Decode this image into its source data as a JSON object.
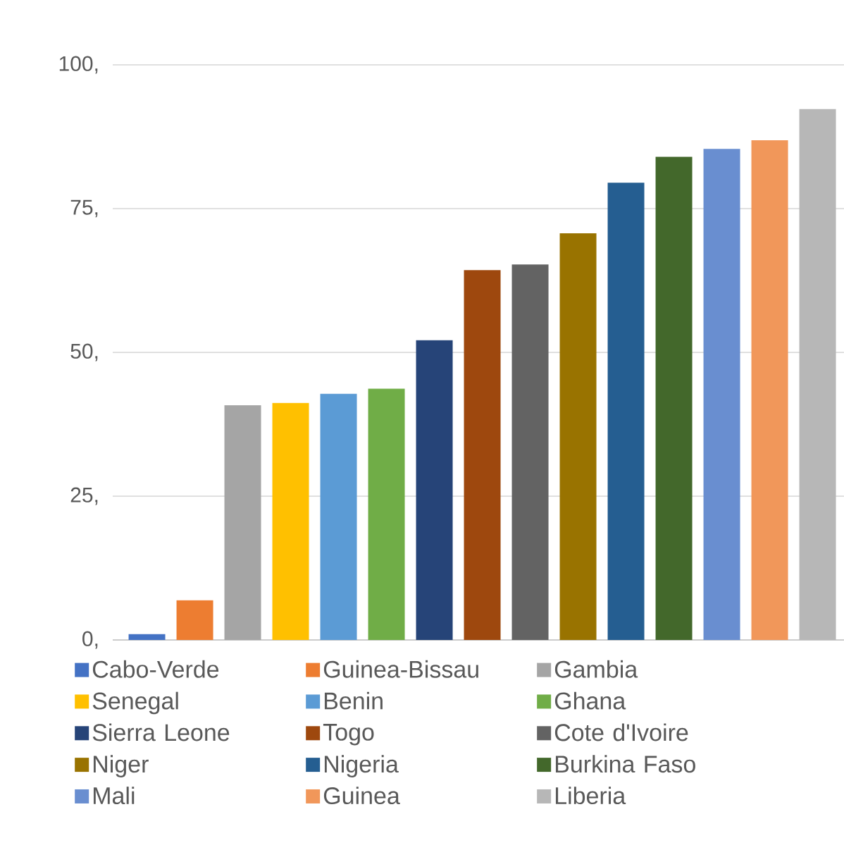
{
  "chart_data": {
    "type": "bar",
    "categories": [
      null
    ],
    "series": [
      {
        "name": "Cabo-Verde",
        "color": "#4472c4",
        "values": [
          1.0
        ]
      },
      {
        "name": "Guinea-Bissau",
        "color": "#ed7d31",
        "values": [
          6.9
        ]
      },
      {
        "name": "Gambia",
        "color": "#a5a5a5",
        "values": [
          40.8
        ]
      },
      {
        "name": "Senegal",
        "color": "#ffc000",
        "values": [
          41.2
        ]
      },
      {
        "name": "Benin",
        "color": "#5b9bd5",
        "values": [
          42.8
        ]
      },
      {
        "name": "Ghana",
        "color": "#70ad47",
        "values": [
          43.7
        ]
      },
      {
        "name": "Sierra Leone",
        "color": "#264478",
        "values": [
          52.1
        ]
      },
      {
        "name": "Togo",
        "color": "#9e480e",
        "values": [
          64.3
        ]
      },
      {
        "name": "Cote d'Ivoire",
        "color": "#636363",
        "values": [
          65.3
        ]
      },
      {
        "name": "Niger",
        "color": "#997300",
        "values": [
          70.7
        ]
      },
      {
        "name": "Nigeria",
        "color": "#255e91",
        "values": [
          79.5
        ]
      },
      {
        "name": "Burkina Faso",
        "color": "#43682b",
        "values": [
          84.0
        ]
      },
      {
        "name": "Mali",
        "color": "#698ed0",
        "values": [
          85.4
        ]
      },
      {
        "name": "Guinea",
        "color": "#f1975a",
        "values": [
          86.9
        ]
      },
      {
        "name": "Liberia",
        "color": "#b7b7b7",
        "values": [
          92.3
        ]
      }
    ],
    "ylim": [
      0,
      100
    ],
    "yticks": [
      {
        "value": 0,
        "label": "0,"
      },
      {
        "value": 25,
        "label": "25,"
      },
      {
        "value": 50,
        "label": "50,"
      },
      {
        "value": 75,
        "label": "75,"
      },
      {
        "value": 100,
        "label": "100,"
      }
    ],
    "grid": "y",
    "legend": "bottom",
    "tick_labels": "y"
  }
}
